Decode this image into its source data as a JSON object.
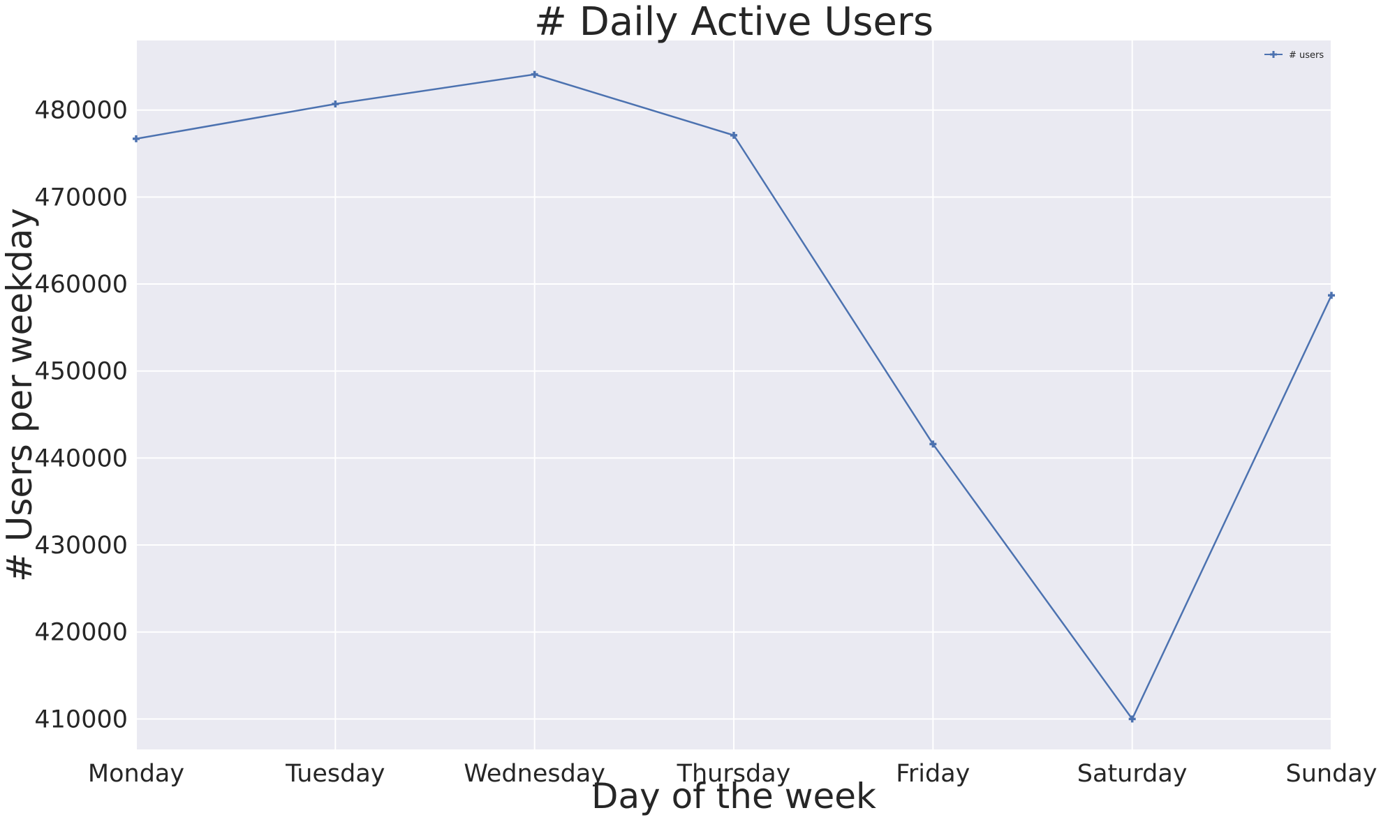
{
  "chart_data": {
    "type": "line",
    "title": "# Daily Active Users",
    "xlabel": "Day of the week",
    "ylabel": "# Users per weekday",
    "categories": [
      "Monday",
      "Tuesday",
      "Wednesday",
      "Thursday",
      "Friday",
      "Saturday",
      "Sunday"
    ],
    "series": [
      {
        "name": "# users",
        "values": [
          476700,
          480700,
          484100,
          477100,
          441600,
          410000,
          458700
        ],
        "color": "#4c72b0",
        "marker": "plus"
      }
    ],
    "ylim": [
      406500,
      488000
    ],
    "yticks": [
      410000,
      420000,
      430000,
      440000,
      450000,
      460000,
      470000,
      480000
    ],
    "grid": true,
    "legend": "top-right",
    "background": "#eaeaf2",
    "grid_color": "#ffffff",
    "text_color": "#262626"
  }
}
